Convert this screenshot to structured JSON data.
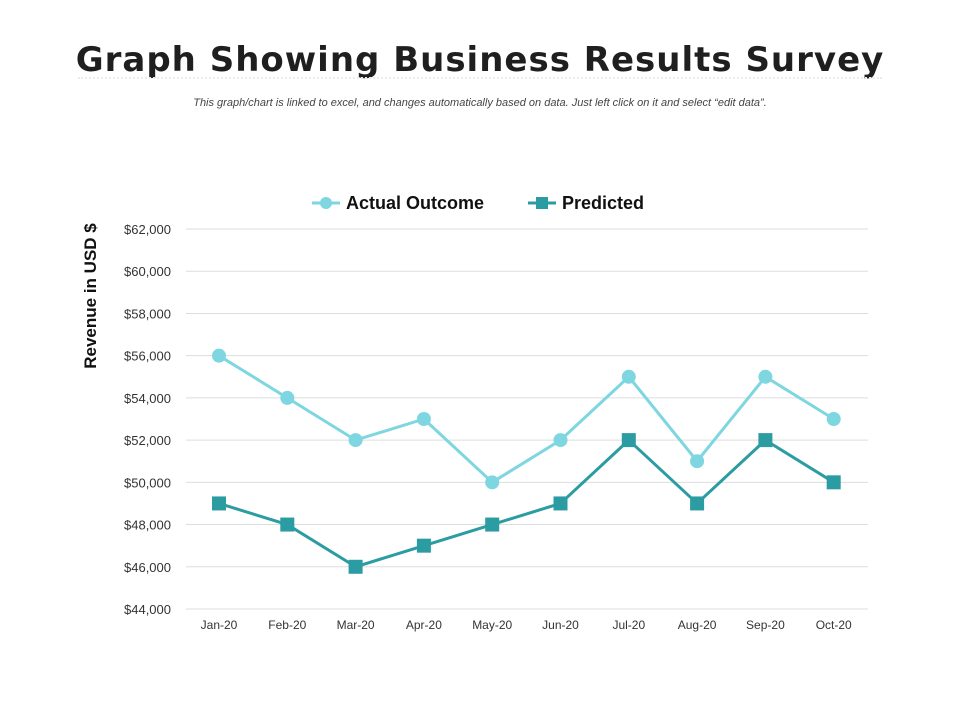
{
  "title": "Graph Showing Business Results Survey",
  "subtitle": "This graph/chart is linked to excel, and changes automatically based on data. Just left click on it and select “edit data”.",
  "chart_data": {
    "type": "line",
    "title": "",
    "xlabel": "",
    "ylabel": "Revenue in USD $",
    "categories": [
      "Jan-20",
      "Feb-20",
      "Mar-20",
      "Apr-20",
      "May-20",
      "Jun-20",
      "Jul-20",
      "Aug-20",
      "Sep-20",
      "Oct-20"
    ],
    "series": [
      {
        "name": "Actual Outcome",
        "marker": "circle",
        "color": "#7dd6e0",
        "values": [
          56000,
          54000,
          52000,
          53000,
          50000,
          52000,
          55000,
          51000,
          55000,
          53000
        ]
      },
      {
        "name": "Predicted",
        "marker": "square",
        "color": "#2b9ca2",
        "values": [
          49000,
          48000,
          46000,
          47000,
          48000,
          49000,
          52000,
          49000,
          52000,
          50000
        ]
      }
    ],
    "ylim": [
      44000,
      62000
    ],
    "yticks": [
      44000,
      46000,
      48000,
      50000,
      52000,
      54000,
      56000,
      58000,
      60000,
      62000
    ],
    "ytick_labels": [
      "$44,000",
      "$46,000",
      "$48,000",
      "$50,000",
      "$52,000",
      "$54,000",
      "$56,000",
      "$58,000",
      "$60,000",
      "$62,000"
    ],
    "grid": true,
    "legend_position": "top-center"
  }
}
